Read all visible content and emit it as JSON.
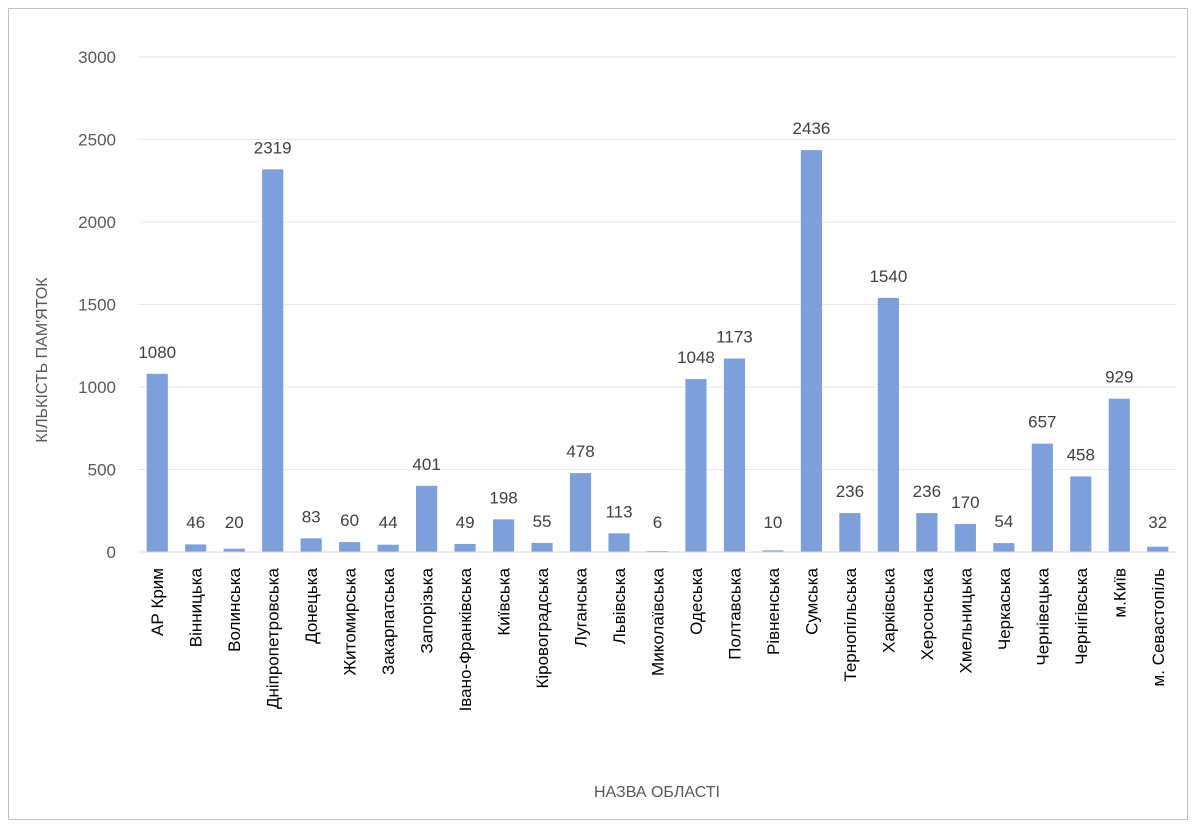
{
  "chart_data": {
    "type": "bar",
    "title": "",
    "xlabel": "НАЗВА ОБЛАСТІ",
    "ylabel": "КІЛЬКІСТЬ ПАМ'ЯТОК",
    "ylim": [
      0,
      3000
    ],
    "yticks": [
      "0",
      "500",
      "1000",
      "1500",
      "2000",
      "2500",
      "3000"
    ],
    "grid": true,
    "legend": "none",
    "bar_color": "#7da0db",
    "categories": [
      "АР Крим",
      "Вінницька",
      "Волинська",
      "Дніпропетровська",
      "Донецька",
      "Житомирська",
      "Закарпатська",
      "Запорізька",
      "Івано-Франківська",
      "Київська",
      "Кіровоградська",
      "Луганська",
      "Львівська",
      "Миколаївська",
      "Одеська",
      "Полтавська",
      "Рівненська",
      "Сумська",
      "Тернопільська",
      "Харківська",
      "Херсонська",
      "Хмельницька",
      "Черкаська",
      "Чернівецька",
      "Чернігівська",
      "м.Київ",
      "м. Севастопіль"
    ],
    "values": [
      1080,
      46,
      20,
      2319,
      83,
      60,
      44,
      401,
      49,
      198,
      55,
      478,
      113,
      6,
      1048,
      1173,
      10,
      2436,
      236,
      1540,
      236,
      170,
      54,
      657,
      458,
      929,
      32
    ]
  }
}
